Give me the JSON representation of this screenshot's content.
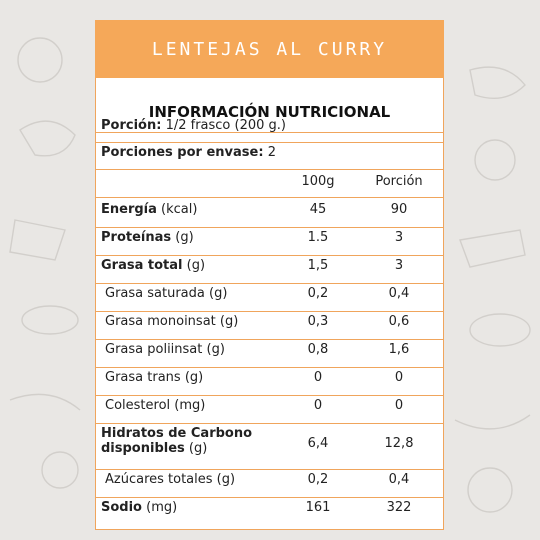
{
  "title": "LENTEJAS AL CURRY",
  "section_title": "INFORMACIÓN NUTRICIONAL",
  "portion": {
    "label": "Porción:",
    "value": "1/2 frasco (200 g.)"
  },
  "servings": {
    "label": "Porciones por envase:",
    "value": "2"
  },
  "columns": {
    "c1": "100g",
    "c2": "Porción"
  },
  "rows": [
    {
      "name": "Energía",
      "unit": "(kcal)",
      "bold": true,
      "indent": false,
      "v1": "45",
      "v2": "90"
    },
    {
      "name": "Proteínas",
      "unit": "(g)",
      "bold": true,
      "indent": false,
      "v1": "1.5",
      "v2": "3"
    },
    {
      "name": "Grasa total",
      "unit": "(g)",
      "bold": true,
      "indent": false,
      "v1": "1,5",
      "v2": "3"
    },
    {
      "name": "Grasa saturada",
      "unit": "(g)",
      "bold": false,
      "indent": true,
      "v1": "0,2",
      "v2": "0,4"
    },
    {
      "name": "Grasa monoinsat",
      "unit": "(g)",
      "bold": false,
      "indent": true,
      "v1": "0,3",
      "v2": "0,6"
    },
    {
      "name": "Grasa poliinsat",
      "unit": "(g)",
      "bold": false,
      "indent": true,
      "v1": "0,8",
      "v2": "1,6"
    },
    {
      "name": "Grasa trans",
      "unit": "(g)",
      "bold": false,
      "indent": true,
      "v1": "0",
      "v2": "0"
    },
    {
      "name": "Colesterol",
      "unit": "(mg)",
      "bold": false,
      "indent": true,
      "v1": "0",
      "v2": "0"
    },
    {
      "name": "Hidratos de Carbono disponibles",
      "name_line1": "Hidratos de Carbono",
      "name_line2": "disponibles",
      "unit": "(g)",
      "bold": true,
      "indent": false,
      "v1": "6,4",
      "v2": "12,8"
    },
    {
      "name": "Azúcares totales",
      "unit": "(g)",
      "bold": false,
      "indent": true,
      "v1": "0,2",
      "v2": "0,4"
    },
    {
      "name": "Sodio",
      "unit": "(mg)",
      "bold": true,
      "indent": false,
      "v1": "161",
      "v2": "322"
    }
  ],
  "colors": {
    "accent": "#f5a859",
    "border": "#f0a55c",
    "background": "#e9e7e4"
  }
}
